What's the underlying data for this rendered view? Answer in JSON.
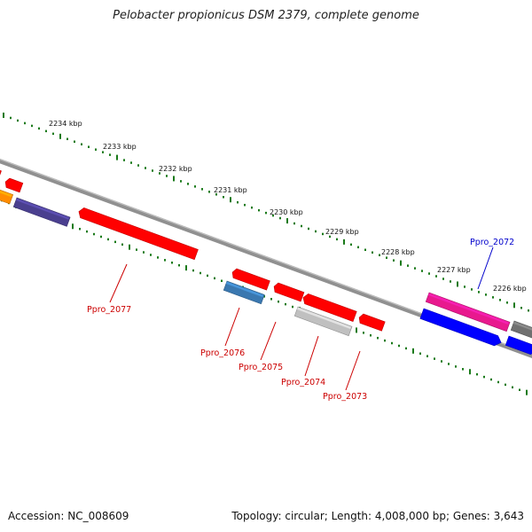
{
  "title": "Pelobacter propionicus DSM 2379, complete genome",
  "footer": {
    "accession": "Accession: NC_008609",
    "summary": "Topology: circular; Length: 4,008,000 bp; Genes: 3,643"
  },
  "colors": {
    "backbone": "#808080",
    "tick": "#1a7a1a",
    "label_red": "#cc0000",
    "label_blue": "#0000cc"
  },
  "ruler_labels": [
    "2234 kbp",
    "2233 kbp",
    "2232 kbp",
    "2231 kbp",
    "2230 kbp",
    "2229 kbp",
    "2228 kbp",
    "2227 kbp",
    "2226 kbp"
  ],
  "features": [
    {
      "name": "red",
      "color": "#ff0000"
    },
    {
      "name": "red",
      "color": "#ff0000"
    },
    {
      "name": "orange",
      "color": "#ff8c00"
    },
    {
      "name": "slate",
      "color": "#4a3f8f"
    },
    {
      "name": "Ppro_2077",
      "color": "#ff0000"
    },
    {
      "name": "red",
      "color": "#ff0000"
    },
    {
      "name": "Ppro_2076",
      "color": "#3a78b0"
    },
    {
      "name": "Ppro_2075",
      "color": "#ff0000"
    },
    {
      "name": "Ppro_2074",
      "color": "#c0c0c0"
    },
    {
      "name": "red",
      "color": "#ff0000"
    },
    {
      "name": "Ppro_2073",
      "color": "#ff0000"
    },
    {
      "name": "Ppro_2072",
      "color": "#e8198e"
    },
    {
      "name": "blue",
      "color": "#0000ff"
    },
    {
      "name": "gray",
      "color": "#707070"
    },
    {
      "name": "blue",
      "color": "#0000ff"
    }
  ],
  "gene_labels": [
    {
      "text": "Ppro_2077",
      "color": "#cc0000"
    },
    {
      "text": "Ppro_2076",
      "color": "#cc0000"
    },
    {
      "text": "Ppro_2075",
      "color": "#cc0000"
    },
    {
      "text": "Ppro_2074",
      "color": "#cc0000"
    },
    {
      "text": "Ppro_2073",
      "color": "#cc0000"
    },
    {
      "text": "Ppro_2072",
      "color": "#0000cc"
    }
  ]
}
